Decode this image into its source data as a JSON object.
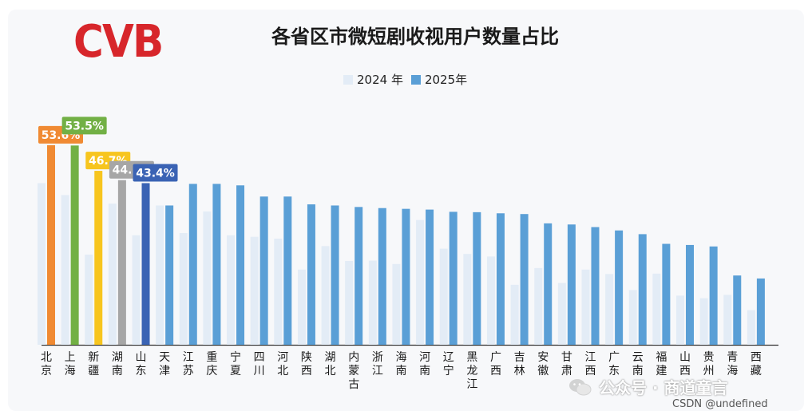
{
  "logo": {
    "text": "CVB"
  },
  "chart_data": {
    "type": "bar",
    "title": "各省区市微短剧收视用户数量占比",
    "legend_position": "top-center",
    "ylim": [
      0,
      60
    ],
    "grid": false,
    "categories": [
      "北京",
      "上海",
      "新疆",
      "湖南",
      "山东",
      "天津",
      "江苏",
      "重庆",
      "宁夏",
      "四川",
      "河北",
      "陕西",
      "湖北",
      "内蒙古",
      "浙江",
      "海南",
      "河南",
      "辽宁",
      "黑龙江",
      "广西",
      "吉林",
      "安徽",
      "甘肃",
      "江西",
      "广东",
      "云南",
      "福建",
      "山西",
      "贵州",
      "青海",
      "西藏"
    ],
    "series": [
      {
        "name": "2024 年",
        "color": "#e3ecf6",
        "values": [
          43.4,
          40.2,
          24.2,
          37.9,
          29.4,
          37.4,
          30.0,
          35.8,
          29.4,
          29.0,
          28.5,
          20.2,
          26.5,
          22.5,
          22.6,
          21.7,
          33.5,
          25.8,
          24.4,
          23.7,
          16.1,
          20.6,
          16.6,
          20.2,
          19.0,
          14.7,
          19.1,
          13.2,
          12.5,
          13.4,
          9.3
        ]
      },
      {
        "name": "2025年",
        "color": "#5a9fd6",
        "values": [
          53.6,
          53.5,
          46.7,
          44.2,
          43.4,
          37.4,
          43.2,
          43.2,
          42.8,
          39.8,
          39.8,
          37.7,
          37.4,
          37.0,
          36.7,
          36.5,
          36.3,
          35.7,
          35.6,
          35.3,
          35.1,
          32.6,
          32.3,
          31.6,
          30.7,
          29.7,
          27.1,
          26.8,
          26.4,
          18.6,
          17.8
        ]
      }
    ],
    "highlights": [
      {
        "index": 0,
        "label": "53.6%",
        "color": "#f08a33"
      },
      {
        "index": 1,
        "label": "53.5%",
        "color": "#72b045"
      },
      {
        "index": 2,
        "label": "46.7%",
        "color": "#f7c51e"
      },
      {
        "index": 3,
        "label": "44.2%",
        "color": "#a6a6a6"
      },
      {
        "index": 4,
        "label": "43.4%",
        "color": "#3a63b4"
      }
    ]
  },
  "watermark": {
    "text": "公众号 · 商道童言",
    "icon": "wechat-icon"
  },
  "footer": {
    "text": "CSDN @undefined"
  }
}
